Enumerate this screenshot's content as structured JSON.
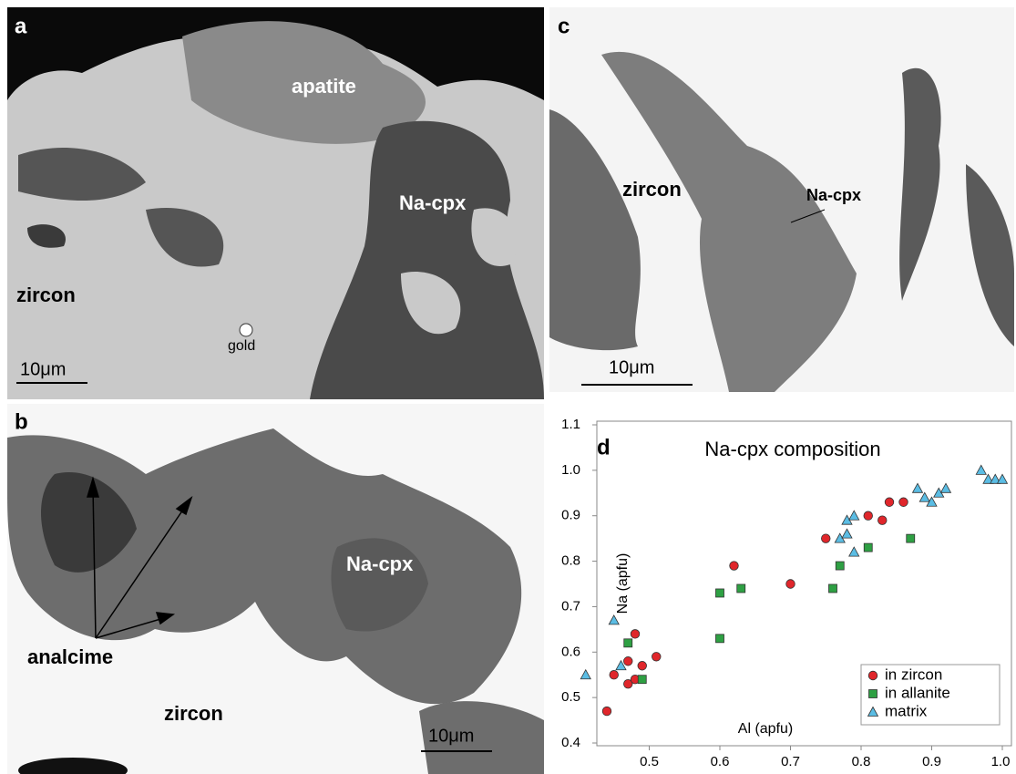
{
  "panels": {
    "a": {
      "letter": "a",
      "labels": [
        "apatite",
        "Na-cpx",
        "zircon",
        "gold"
      ],
      "scale": "10μm"
    },
    "b": {
      "letter": "b",
      "labels": [
        "Na-cpx",
        "analcime",
        "zircon"
      ],
      "scale": "10μm"
    },
    "c": {
      "letter": "c",
      "labels": [
        "zircon",
        "Na-cpx"
      ],
      "scale": "10μm"
    }
  },
  "chart_data": {
    "type": "scatter",
    "panel_letter": "d",
    "title": "Na-cpx composition",
    "x_label": "Al (apfu)",
    "y_label": "Na (apfu)",
    "xlim": [
      0.4,
      1.0
    ],
    "ylim": [
      0.4,
      1.1
    ],
    "xticks": [
      0.5,
      0.6,
      0.7,
      0.8,
      0.9,
      {
        "value": 1,
        "label": "1.0"
      }
    ],
    "yticks": [
      0.4,
      0.5,
      0.6,
      0.7,
      0.8,
      0.9,
      {
        "value": 1,
        "label": "1.0"
      },
      1.1
    ],
    "legend": "bottom-right",
    "series": [
      {
        "name": "in zircon",
        "color": "#e0262b",
        "marker": "circle",
        "x": [
          0.44,
          0.45,
          0.47,
          0.48,
          0.47,
          0.48,
          0.49,
          0.51,
          0.62,
          0.7,
          0.75,
          0.81,
          0.83,
          0.84,
          0.86
        ],
        "values": [
          0.47,
          0.55,
          0.58,
          0.64,
          0.53,
          0.54,
          0.57,
          0.59,
          0.79,
          0.75,
          0.85,
          0.9,
          0.89,
          0.93,
          0.93
        ]
      },
      {
        "name": "in allanite",
        "color": "#2ea043",
        "marker": "square",
        "x": [
          0.47,
          0.49,
          0.6,
          0.6,
          0.63,
          0.76,
          0.77,
          0.81,
          0.87
        ],
        "values": [
          0.62,
          0.54,
          0.63,
          0.73,
          0.74,
          0.74,
          0.79,
          0.83,
          0.85
        ]
      },
      {
        "name": "matrix",
        "color": "#5bbde4",
        "marker": "triangle",
        "x": [
          0.41,
          0.45,
          0.46,
          0.77,
          0.78,
          0.78,
          0.79,
          0.79,
          0.88,
          0.89,
          0.9,
          0.91,
          0.92,
          0.97,
          0.98,
          0.99,
          1.0
        ],
        "values": [
          0.55,
          0.67,
          0.57,
          0.85,
          0.86,
          0.89,
          0.82,
          0.9,
          0.96,
          0.94,
          0.93,
          0.95,
          0.96,
          1.0,
          0.98,
          0.98,
          0.98
        ]
      }
    ]
  }
}
